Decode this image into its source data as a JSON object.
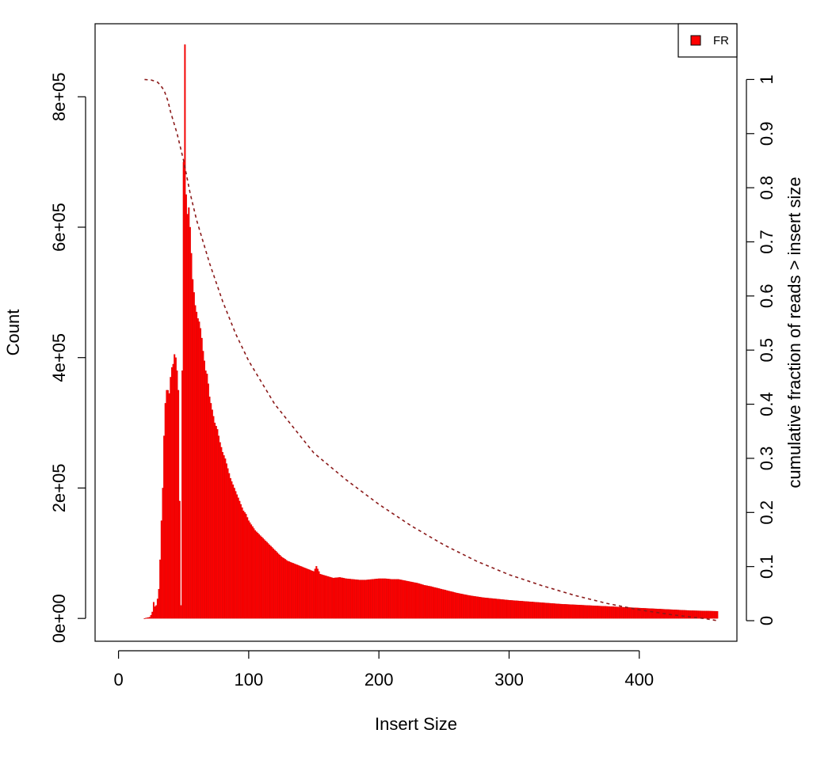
{
  "chart_data": {
    "type": "bar",
    "xlabel": "Insert Size",
    "ylabel": "Count",
    "y2label": "cumulative fraction of reads > insert size",
    "xlim": [
      -18,
      475
    ],
    "ylim": [
      -35000,
      912000
    ],
    "y2lim": [
      -0.038,
      1.103
    ],
    "xticks": [
      0,
      100,
      200,
      300,
      400
    ],
    "xtick_labels": [
      "0",
      "100",
      "200",
      "300",
      "400"
    ],
    "yticks": [
      0,
      200000,
      400000,
      600000,
      800000
    ],
    "ytick_labels": [
      "0e+00",
      "2e+05",
      "4e+05",
      "6e+05",
      "8e+05"
    ],
    "y2ticks": [
      0,
      0.1,
      0.2,
      0.3,
      0.4,
      0.5,
      0.6,
      0.7,
      0.8,
      0.9,
      1
    ],
    "y2tick_labels": [
      "0",
      "0.1",
      "0.2",
      "0.3",
      "0.4",
      "0.5",
      "0.6",
      "0.7",
      "0.8",
      "0.9",
      "1"
    ],
    "grid": false,
    "legend_position": "top-right",
    "colors": {
      "bars": "#ff0000",
      "bar_edge": "#cc0000",
      "cumulative": "#8b1a1a",
      "axis": "#000000"
    },
    "series": [
      {
        "name": "FR",
        "type": "bar",
        "x": [
          20,
          24,
          25,
          26,
          27,
          28,
          29,
          30,
          31,
          32,
          33,
          34,
          35,
          36,
          37,
          38,
          39,
          40,
          41,
          42,
          43,
          44,
          45,
          46,
          47,
          48,
          49,
          50,
          51,
          52,
          53,
          54,
          55,
          56,
          57,
          58,
          59,
          60,
          61,
          62,
          63,
          64,
          65,
          66,
          67,
          68,
          69,
          70,
          72,
          74,
          76,
          78,
          80,
          82,
          84,
          86,
          88,
          90,
          92,
          94,
          96,
          98,
          100,
          105,
          110,
          115,
          120,
          125,
          130,
          135,
          140,
          145,
          150,
          152,
          155,
          160,
          165,
          170,
          175,
          180,
          185,
          190,
          195,
          200,
          205,
          210,
          215,
          220,
          225,
          230,
          235,
          240,
          250,
          260,
          270,
          280,
          290,
          300,
          320,
          340,
          360,
          380,
          400,
          420,
          440,
          460
        ],
        "values": [
          0,
          2000,
          5000,
          10000,
          25000,
          18000,
          20000,
          30000,
          45000,
          90000,
          150000,
          200000,
          280000,
          330000,
          350000,
          350000,
          345000,
          370000,
          385000,
          390000,
          405000,
          400000,
          380000,
          350000,
          180000,
          20000,
          380000,
          700000,
          880000,
          650000,
          620000,
          630000,
          600000,
          560000,
          520000,
          500000,
          480000,
          470000,
          460000,
          455000,
          445000,
          430000,
          410000,
          395000,
          380000,
          375000,
          360000,
          340000,
          320000,
          300000,
          290000,
          270000,
          255000,
          245000,
          230000,
          215000,
          205000,
          195000,
          185000,
          175000,
          165000,
          160000,
          150000,
          135000,
          125000,
          115000,
          105000,
          95000,
          88000,
          84000,
          80000,
          76000,
          72000,
          80000,
          68000,
          65000,
          62000,
          63000,
          61000,
          60000,
          59000,
          59000,
          60000,
          61000,
          61000,
          60000,
          60000,
          58000,
          56000,
          54000,
          51000,
          49000,
          44000,
          39000,
          35000,
          32000,
          30000,
          28000,
          25000,
          22000,
          20000,
          18000,
          16000,
          14000,
          12000,
          11000
        ]
      },
      {
        "name": "",
        "type": "line",
        "axis": "right",
        "x": [
          20,
          25,
          28,
          30,
          32,
          35,
          38,
          40,
          45,
          50,
          55,
          60,
          65,
          70,
          80,
          90,
          100,
          110,
          120,
          130,
          140,
          150,
          160,
          175,
          200,
          225,
          250,
          275,
          300,
          325,
          350,
          375,
          400,
          425,
          450,
          460
        ],
        "values": [
          1.0,
          0.999,
          0.997,
          0.995,
          0.99,
          0.98,
          0.96,
          0.94,
          0.9,
          0.85,
          0.79,
          0.74,
          0.7,
          0.66,
          0.59,
          0.53,
          0.48,
          0.44,
          0.4,
          0.37,
          0.34,
          0.31,
          0.29,
          0.26,
          0.215,
          0.175,
          0.14,
          0.11,
          0.085,
          0.065,
          0.047,
          0.032,
          0.02,
          0.011,
          0.004,
          0.0
        ]
      }
    ]
  }
}
